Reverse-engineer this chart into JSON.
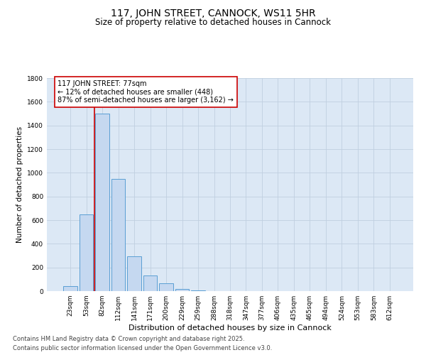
{
  "title": "117, JOHN STREET, CANNOCK, WS11 5HR",
  "subtitle": "Size of property relative to detached houses in Cannock",
  "xlabel": "Distribution of detached houses by size in Cannock",
  "ylabel": "Number of detached properties",
  "categories": [
    "23sqm",
    "53sqm",
    "82sqm",
    "112sqm",
    "141sqm",
    "171sqm",
    "200sqm",
    "229sqm",
    "259sqm",
    "288sqm",
    "318sqm",
    "347sqm",
    "377sqm",
    "406sqm",
    "435sqm",
    "465sqm",
    "494sqm",
    "524sqm",
    "553sqm",
    "583sqm",
    "612sqm"
  ],
  "values": [
    40,
    650,
    1500,
    950,
    295,
    130,
    65,
    20,
    5,
    3,
    1,
    0,
    0,
    0,
    0,
    0,
    0,
    0,
    0,
    0,
    0
  ],
  "bar_color": "#c5d8f0",
  "bar_edge_color": "#5a9fd4",
  "grid_color": "#c0cfe0",
  "background_color": "#dce8f5",
  "vline_color": "#cc0000",
  "annotation_text": "117 JOHN STREET: 77sqm\n← 12% of detached houses are smaller (448)\n87% of semi-detached houses are larger (3,162) →",
  "annotation_box_color": "#ffffff",
  "annotation_box_edge": "#cc0000",
  "ylim": [
    0,
    1800
  ],
  "yticks": [
    0,
    200,
    400,
    600,
    800,
    1000,
    1200,
    1400,
    1600,
    1800
  ],
  "footer1": "Contains HM Land Registry data © Crown copyright and database right 2025.",
  "footer2": "Contains public sector information licensed under the Open Government Licence v3.0.",
  "title_fontsize": 10,
  "subtitle_fontsize": 8.5,
  "ylabel_fontsize": 7.5,
  "xlabel_fontsize": 8,
  "tick_fontsize": 6.5,
  "annotation_fontsize": 7,
  "footer_fontsize": 6
}
